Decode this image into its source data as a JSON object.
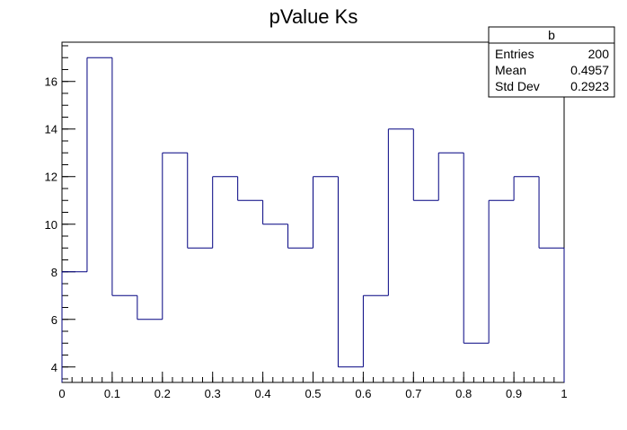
{
  "chart_data": {
    "type": "bar",
    "title": "pValue Ks",
    "xlabel": "",
    "ylabel": "",
    "xlim": [
      0,
      1
    ],
    "ylim": [
      3.35,
      17.65
    ],
    "bin_edges": [
      0,
      0.05,
      0.1,
      0.15,
      0.2,
      0.25,
      0.3,
      0.35,
      0.4,
      0.45,
      0.5,
      0.55,
      0.6,
      0.65,
      0.7,
      0.75,
      0.8,
      0.85,
      0.9,
      0.95,
      1.0
    ],
    "values": [
      8,
      17,
      7,
      6,
      13,
      9,
      12,
      11,
      10,
      9,
      12,
      4,
      7,
      14,
      11,
      13,
      5,
      11,
      12,
      9
    ],
    "x_ticks": [
      0,
      0.1,
      0.2,
      0.3,
      0.4,
      0.5,
      0.6,
      0.7,
      0.8,
      0.9,
      1.0
    ],
    "x_tick_labels": [
      "0",
      "0.1",
      "0.2",
      "0.3",
      "0.4",
      "0.5",
      "0.6",
      "0.7",
      "0.8",
      "0.9",
      "1"
    ],
    "y_ticks": [
      4,
      6,
      8,
      10,
      12,
      14,
      16
    ],
    "y_tick_labels": [
      "4",
      "6",
      "8",
      "10",
      "12",
      "14",
      "16"
    ],
    "line_color": "#000080",
    "grid": false,
    "legend_placement": "top-right",
    "stats_box": {
      "title": "b",
      "rows": [
        {
          "label": "Entries",
          "value": "200"
        },
        {
          "label": "Mean",
          "value": "0.4957"
        },
        {
          "label": "Std Dev",
          "value": "0.2923"
        }
      ]
    }
  }
}
